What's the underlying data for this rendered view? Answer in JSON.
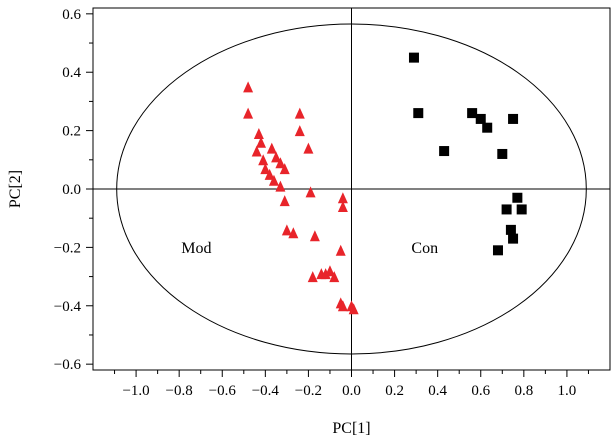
{
  "chart_data": {
    "type": "scatter",
    "title": "",
    "xlabel": "PC[1]",
    "ylabel": "PC[2]",
    "xlim": [
      -1.2,
      1.2
    ],
    "ylim": [
      -0.62,
      0.62
    ],
    "xticks": [
      -1.0,
      -0.8,
      -0.6,
      -0.4,
      -0.2,
      0.0,
      0.2,
      0.4,
      0.6,
      0.8,
      1.0
    ],
    "xtick_labels": [
      "−1.0",
      "−0.8",
      "−0.6",
      "−0.4",
      "−0.2",
      "0.0",
      "0.2",
      "0.4",
      "0.6",
      "0.8",
      "1.0"
    ],
    "yticks": [
      -0.6,
      -0.4,
      -0.2,
      0.0,
      0.2,
      0.4,
      0.6
    ],
    "ytick_labels": [
      "−0.6",
      "−0.4",
      "−0.2",
      "0.0",
      "0.2",
      "0.4",
      "0.6"
    ],
    "grid": false,
    "ellipse": {
      "center": [
        0,
        0
      ],
      "rx": 1.09,
      "ry": 0.565
    },
    "series": [
      {
        "marker": "triangle",
        "color": "#e8242a",
        "points": [
          [
            -0.48,
            0.35
          ],
          [
            -0.48,
            0.26
          ],
          [
            -0.43,
            0.19
          ],
          [
            -0.42,
            0.16
          ],
          [
            -0.44,
            0.13
          ],
          [
            -0.41,
            0.1
          ],
          [
            -0.4,
            0.07
          ],
          [
            -0.37,
            0.14
          ],
          [
            -0.38,
            0.05
          ],
          [
            -0.35,
            0.11
          ],
          [
            -0.36,
            0.03
          ],
          [
            -0.33,
            0.09
          ],
          [
            -0.33,
            0.01
          ],
          [
            -0.31,
            0.07
          ],
          [
            -0.31,
            -0.04
          ],
          [
            -0.3,
            -0.14
          ],
          [
            -0.27,
            -0.15
          ],
          [
            -0.24,
            0.26
          ],
          [
            -0.24,
            0.2
          ],
          [
            -0.2,
            0.14
          ],
          [
            -0.19,
            -0.01
          ],
          [
            -0.17,
            -0.16
          ],
          [
            -0.04,
            -0.03
          ],
          [
            -0.04,
            -0.06
          ],
          [
            -0.05,
            -0.21
          ],
          [
            -0.18,
            -0.3
          ],
          [
            -0.14,
            -0.29
          ],
          [
            -0.12,
            -0.29
          ],
          [
            -0.1,
            -0.28
          ],
          [
            -0.08,
            -0.3
          ],
          [
            -0.05,
            -0.39
          ],
          [
            -0.04,
            -0.4
          ],
          [
            0.0,
            -0.4
          ],
          [
            0.01,
            -0.41
          ]
        ]
      },
      {
        "marker": "square",
        "color": "#000000",
        "points": [
          [
            0.29,
            0.45
          ],
          [
            0.31,
            0.26
          ],
          [
            0.43,
            0.13
          ],
          [
            0.56,
            0.26
          ],
          [
            0.6,
            0.24
          ],
          [
            0.63,
            0.21
          ],
          [
            0.7,
            0.12
          ],
          [
            0.75,
            0.24
          ],
          [
            0.77,
            -0.03
          ],
          [
            0.79,
            -0.07
          ],
          [
            0.72,
            -0.07
          ],
          [
            0.74,
            -0.14
          ],
          [
            0.75,
            -0.17
          ],
          [
            0.68,
            -0.21
          ]
        ]
      }
    ],
    "annotations": [
      {
        "text": "Mod",
        "x": -0.72,
        "y": -0.22
      },
      {
        "text": "Con",
        "x": 0.34,
        "y": -0.22
      }
    ]
  }
}
